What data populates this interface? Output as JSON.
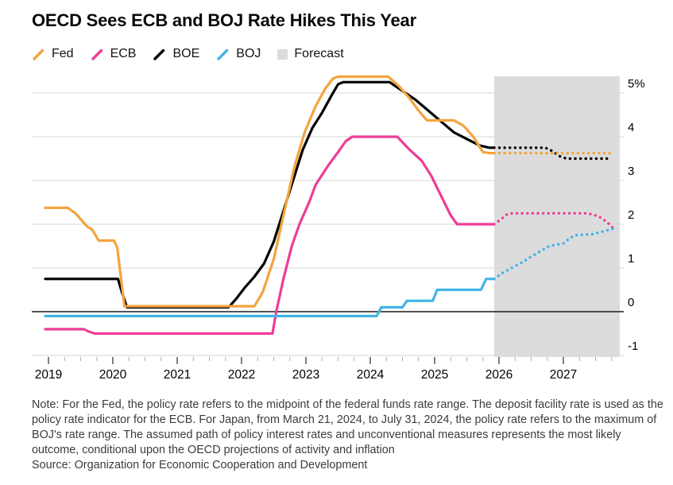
{
  "title": "OECD Sees ECB and BOJ Rate Hikes This Year",
  "legend": {
    "items": [
      {
        "label": "Fed",
        "color": "#F3A43F",
        "swatch": "line"
      },
      {
        "label": "ECB",
        "color": "#EE3D96",
        "swatch": "line"
      },
      {
        "label": "BOE",
        "color": "#000000",
        "swatch": "line"
      },
      {
        "label": "BOJ",
        "color": "#41B4E6",
        "swatch": "line"
      },
      {
        "label": "Forecast",
        "color": "#DCDCDC",
        "swatch": "square"
      }
    ]
  },
  "note": {
    "text": "Note: For the Fed, the policy rate refers to the midpoint of the federal funds rate range. The deposit facility rate is used as the policy rate indicator for the ECB. For Japan, from March 21, 2024, to July 31, 2024, the policy rate refers to the maximum of BOJ's rate range. The assumed path of policy interest rates and unconventional measures represents the most likely outcome, conditional upon the OECD projections of activity and inflation",
    "source": "Source: Organization for Economic Cooperation and Development"
  },
  "chart_data": {
    "type": "line",
    "title": "OECD Sees ECB and BOJ Rate Hikes This Year",
    "ylabel": "%",
    "x_axis": {
      "ticks": [
        2019,
        2020,
        2021,
        2022,
        2023,
        2024,
        2025,
        2026,
        2027
      ],
      "minor_interval": 0.25,
      "range": [
        2018.92,
        2027.95
      ]
    },
    "y_axis": {
      "unit": "%",
      "grid": true,
      "range": [
        -1.35,
        5.6
      ],
      "ticks": [
        {
          "value": 5,
          "label": "5%"
        },
        {
          "value": 4,
          "label": "4"
        },
        {
          "value": 3,
          "label": "3"
        },
        {
          "value": 2,
          "label": "2"
        },
        {
          "value": 1,
          "label": "1"
        },
        {
          "value": 0,
          "label": "0"
        },
        {
          "value": -1,
          "label": "-1"
        }
      ]
    },
    "forecast": {
      "label": "Forecast",
      "start": 2025.925,
      "end": 2027.875,
      "color": "#DCDCDC"
    },
    "series": [
      {
        "name": "ECB",
        "color": "#EE3D96",
        "solid": [
          [
            2018.95,
            -0.4
          ],
          [
            2019.55,
            -0.4
          ],
          [
            2019.62,
            -0.45
          ],
          [
            2019.72,
            -0.5
          ],
          [
            2022.48,
            -0.5
          ],
          [
            2022.54,
            0.0
          ],
          [
            2022.65,
            0.75
          ],
          [
            2022.78,
            1.5
          ],
          [
            2022.9,
            2.0
          ],
          [
            2023.05,
            2.5
          ],
          [
            2023.15,
            2.9
          ],
          [
            2023.35,
            3.35
          ],
          [
            2023.5,
            3.65
          ],
          [
            2023.62,
            3.9
          ],
          [
            2023.72,
            4.0
          ],
          [
            2024.42,
            4.0
          ],
          [
            2024.6,
            3.72
          ],
          [
            2024.8,
            3.45
          ],
          [
            2024.95,
            3.1
          ],
          [
            2025.05,
            2.8
          ],
          [
            2025.15,
            2.5
          ],
          [
            2025.25,
            2.2
          ],
          [
            2025.35,
            2.0
          ],
          [
            2025.925,
            2.0
          ]
        ],
        "forecast": [
          [
            2025.925,
            2.0
          ],
          [
            2026.02,
            2.1
          ],
          [
            2026.12,
            2.22
          ],
          [
            2026.2,
            2.25
          ],
          [
            2027.38,
            2.25
          ],
          [
            2027.55,
            2.18
          ],
          [
            2027.68,
            2.05
          ],
          [
            2027.78,
            1.9
          ]
        ]
      },
      {
        "name": "BOE",
        "color": "#000000",
        "solid": [
          [
            2018.95,
            0.75
          ],
          [
            2020.08,
            0.75
          ],
          [
            2020.14,
            0.45
          ],
          [
            2020.22,
            0.1
          ],
          [
            2021.8,
            0.1
          ],
          [
            2021.92,
            0.3
          ],
          [
            2022.05,
            0.55
          ],
          [
            2022.2,
            0.8
          ],
          [
            2022.35,
            1.1
          ],
          [
            2022.5,
            1.6
          ],
          [
            2022.65,
            2.3
          ],
          [
            2022.8,
            3.0
          ],
          [
            2022.95,
            3.7
          ],
          [
            2023.1,
            4.2
          ],
          [
            2023.25,
            4.55
          ],
          [
            2023.4,
            4.95
          ],
          [
            2023.5,
            5.2
          ],
          [
            2023.58,
            5.25
          ],
          [
            2024.3,
            5.25
          ],
          [
            2024.5,
            5.05
          ],
          [
            2024.7,
            4.85
          ],
          [
            2024.9,
            4.6
          ],
          [
            2025.1,
            4.35
          ],
          [
            2025.3,
            4.1
          ],
          [
            2025.5,
            3.95
          ],
          [
            2025.7,
            3.8
          ],
          [
            2025.85,
            3.75
          ],
          [
            2025.925,
            3.75
          ]
        ],
        "forecast": [
          [
            2025.925,
            3.75
          ],
          [
            2026.72,
            3.75
          ],
          [
            2026.82,
            3.68
          ],
          [
            2026.95,
            3.55
          ],
          [
            2027.05,
            3.5
          ],
          [
            2027.72,
            3.5
          ]
        ]
      },
      {
        "name": "Fed",
        "color": "#F3A43F",
        "solid": [
          [
            2018.95,
            2.375
          ],
          [
            2019.3,
            2.375
          ],
          [
            2019.42,
            2.25
          ],
          [
            2019.6,
            1.95
          ],
          [
            2019.68,
            1.875
          ],
          [
            2019.78,
            1.625
          ],
          [
            2020.02,
            1.625
          ],
          [
            2020.07,
            1.45
          ],
          [
            2020.18,
            0.125
          ],
          [
            2022.2,
            0.125
          ],
          [
            2022.33,
            0.45
          ],
          [
            2022.5,
            1.2
          ],
          [
            2022.65,
            2.2
          ],
          [
            2022.82,
            3.3
          ],
          [
            2022.98,
            4.1
          ],
          [
            2023.15,
            4.7
          ],
          [
            2023.3,
            5.1
          ],
          [
            2023.42,
            5.33
          ],
          [
            2023.5,
            5.375
          ],
          [
            2024.28,
            5.375
          ],
          [
            2024.45,
            5.15
          ],
          [
            2024.6,
            4.9
          ],
          [
            2024.75,
            4.6
          ],
          [
            2024.88,
            4.375
          ],
          [
            2025.3,
            4.375
          ],
          [
            2025.45,
            4.25
          ],
          [
            2025.6,
            4.0
          ],
          [
            2025.75,
            3.65
          ],
          [
            2025.85,
            3.625
          ],
          [
            2025.925,
            3.625
          ]
        ],
        "forecast": [
          [
            2025.925,
            3.625
          ],
          [
            2027.78,
            3.625
          ]
        ]
      },
      {
        "name": "BOJ",
        "color": "#41B4E6",
        "solid": [
          [
            2018.95,
            -0.1
          ],
          [
            2024.1,
            -0.1
          ],
          [
            2024.17,
            0.1
          ],
          [
            2024.5,
            0.1
          ],
          [
            2024.57,
            0.25
          ],
          [
            2024.97,
            0.25
          ],
          [
            2025.04,
            0.5
          ],
          [
            2025.72,
            0.5
          ],
          [
            2025.8,
            0.75
          ],
          [
            2025.925,
            0.75
          ]
        ],
        "forecast": [
          [
            2025.925,
            0.75
          ],
          [
            2026.05,
            0.88
          ],
          [
            2026.35,
            1.12
          ],
          [
            2026.6,
            1.35
          ],
          [
            2026.75,
            1.48
          ],
          [
            2026.85,
            1.52
          ],
          [
            2027.0,
            1.56
          ],
          [
            2027.1,
            1.68
          ],
          [
            2027.18,
            1.75
          ],
          [
            2027.45,
            1.77
          ],
          [
            2027.6,
            1.83
          ],
          [
            2027.78,
            1.9
          ]
        ]
      }
    ],
    "style": {
      "gridline_color": "#D7D7D7",
      "zero_line_color": "#1A1A1A",
      "major_tick_color": "#3C3C3C",
      "minor_tick_color": "#ADADAD",
      "axis_label_color": "#000000"
    },
    "legend_position": "top-left"
  }
}
